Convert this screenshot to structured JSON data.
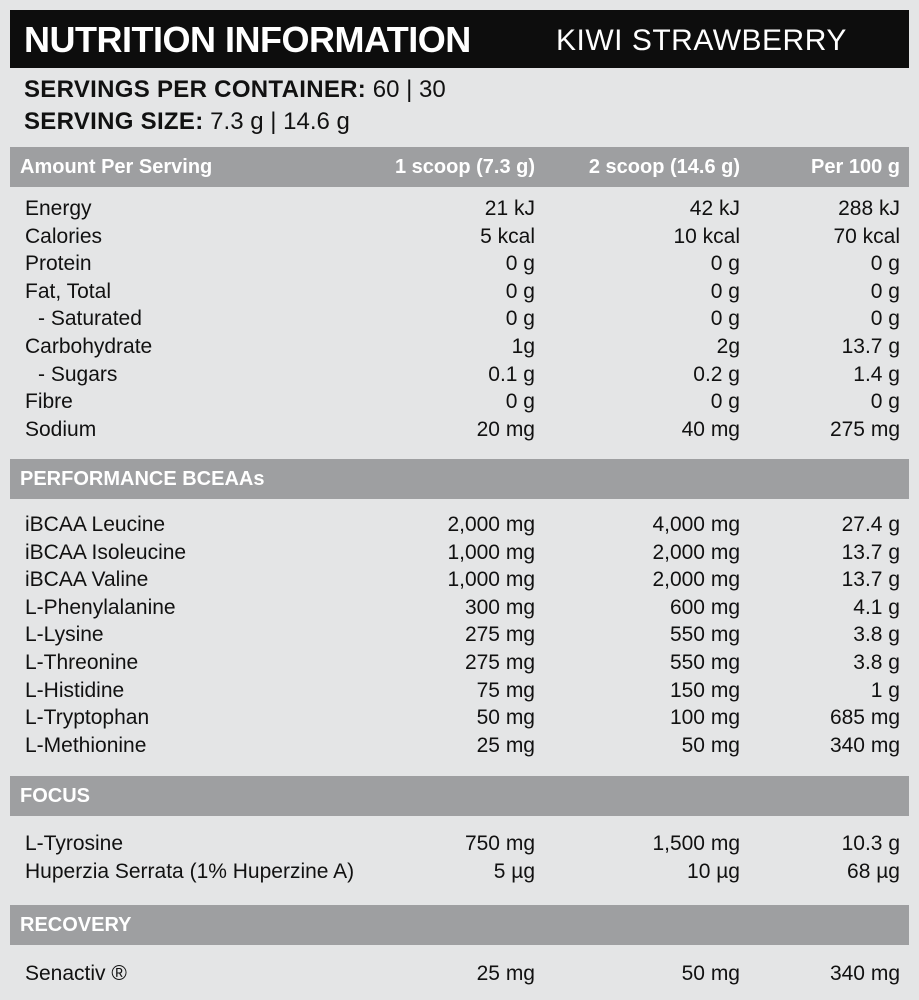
{
  "header": {
    "title": "NUTRITION INFORMATION",
    "flavor": "KIWI STRAWBERRY"
  },
  "servings": {
    "per_container_label": "SERVINGS PER CONTAINER:",
    "per_container_value": "60 | 30",
    "size_label": "SERVING SIZE:",
    "size_value": "7.3 g | 14.6 g"
  },
  "table": {
    "columns": [
      "Amount Per Serving",
      "1 scoop (7.3 g)",
      "2 scoop (14.6 g)",
      "Per 100 g"
    ],
    "rows": [
      [
        "Energy",
        "21 kJ",
        "42 kJ",
        "288 kJ"
      ],
      [
        "Calories",
        "5 kcal",
        "10 kcal",
        "70 kcal"
      ],
      [
        "Protein",
        "0 g",
        "0 g",
        "0 g"
      ],
      [
        "Fat, Total",
        "0 g",
        "0 g",
        "0 g"
      ],
      [
        "- Saturated",
        "0 g",
        "0 g",
        "0 g"
      ],
      [
        "Carbohydrate",
        "1g",
        "2g",
        "13.7 g"
      ],
      [
        "- Sugars",
        "0.1 g",
        "0.2 g",
        "1.4 g"
      ],
      [
        "Fibre",
        "0 g",
        "0 g",
        "0 g"
      ],
      [
        "Sodium",
        "20 mg",
        "40 mg",
        "275 mg"
      ]
    ],
    "sections": [
      {
        "title": "PERFORMANCE BCEAAs",
        "rows": [
          [
            "iBCAA Leucine",
            "2,000 mg",
            "4,000 mg",
            "27.4 g"
          ],
          [
            "iBCAA Isoleucine",
            "1,000 mg",
            "2,000 mg",
            "13.7 g"
          ],
          [
            "iBCAA Valine",
            "1,000 mg",
            "2,000 mg",
            "13.7 g"
          ],
          [
            "L-Phenylalanine",
            "300 mg",
            "600 mg",
            "4.1 g"
          ],
          [
            "L-Lysine",
            "275 mg",
            "550 mg",
            "3.8 g"
          ],
          [
            "L-Threonine",
            "275 mg",
            "550 mg",
            "3.8 g"
          ],
          [
            "L-Histidine",
            "75 mg",
            "150 mg",
            "1 g"
          ],
          [
            "L-Tryptophan",
            "50 mg",
            "100 mg",
            "685 mg"
          ],
          [
            "L-Methionine",
            "25 mg",
            "50 mg",
            "340 mg"
          ]
        ]
      },
      {
        "title": "FOCUS",
        "rows": [
          [
            "L-Tyrosine",
            "750 mg",
            "1,500 mg",
            "10.3 g"
          ],
          [
            "Huperzia Serrata (1% Huperzine A)",
            "5 µg",
            "10 µg",
            "68 µg"
          ]
        ]
      },
      {
        "title": "RECOVERY",
        "rows": [
          [
            "Senactiv ®",
            "25 mg",
            "50 mg",
            "340 mg"
          ]
        ]
      }
    ]
  }
}
